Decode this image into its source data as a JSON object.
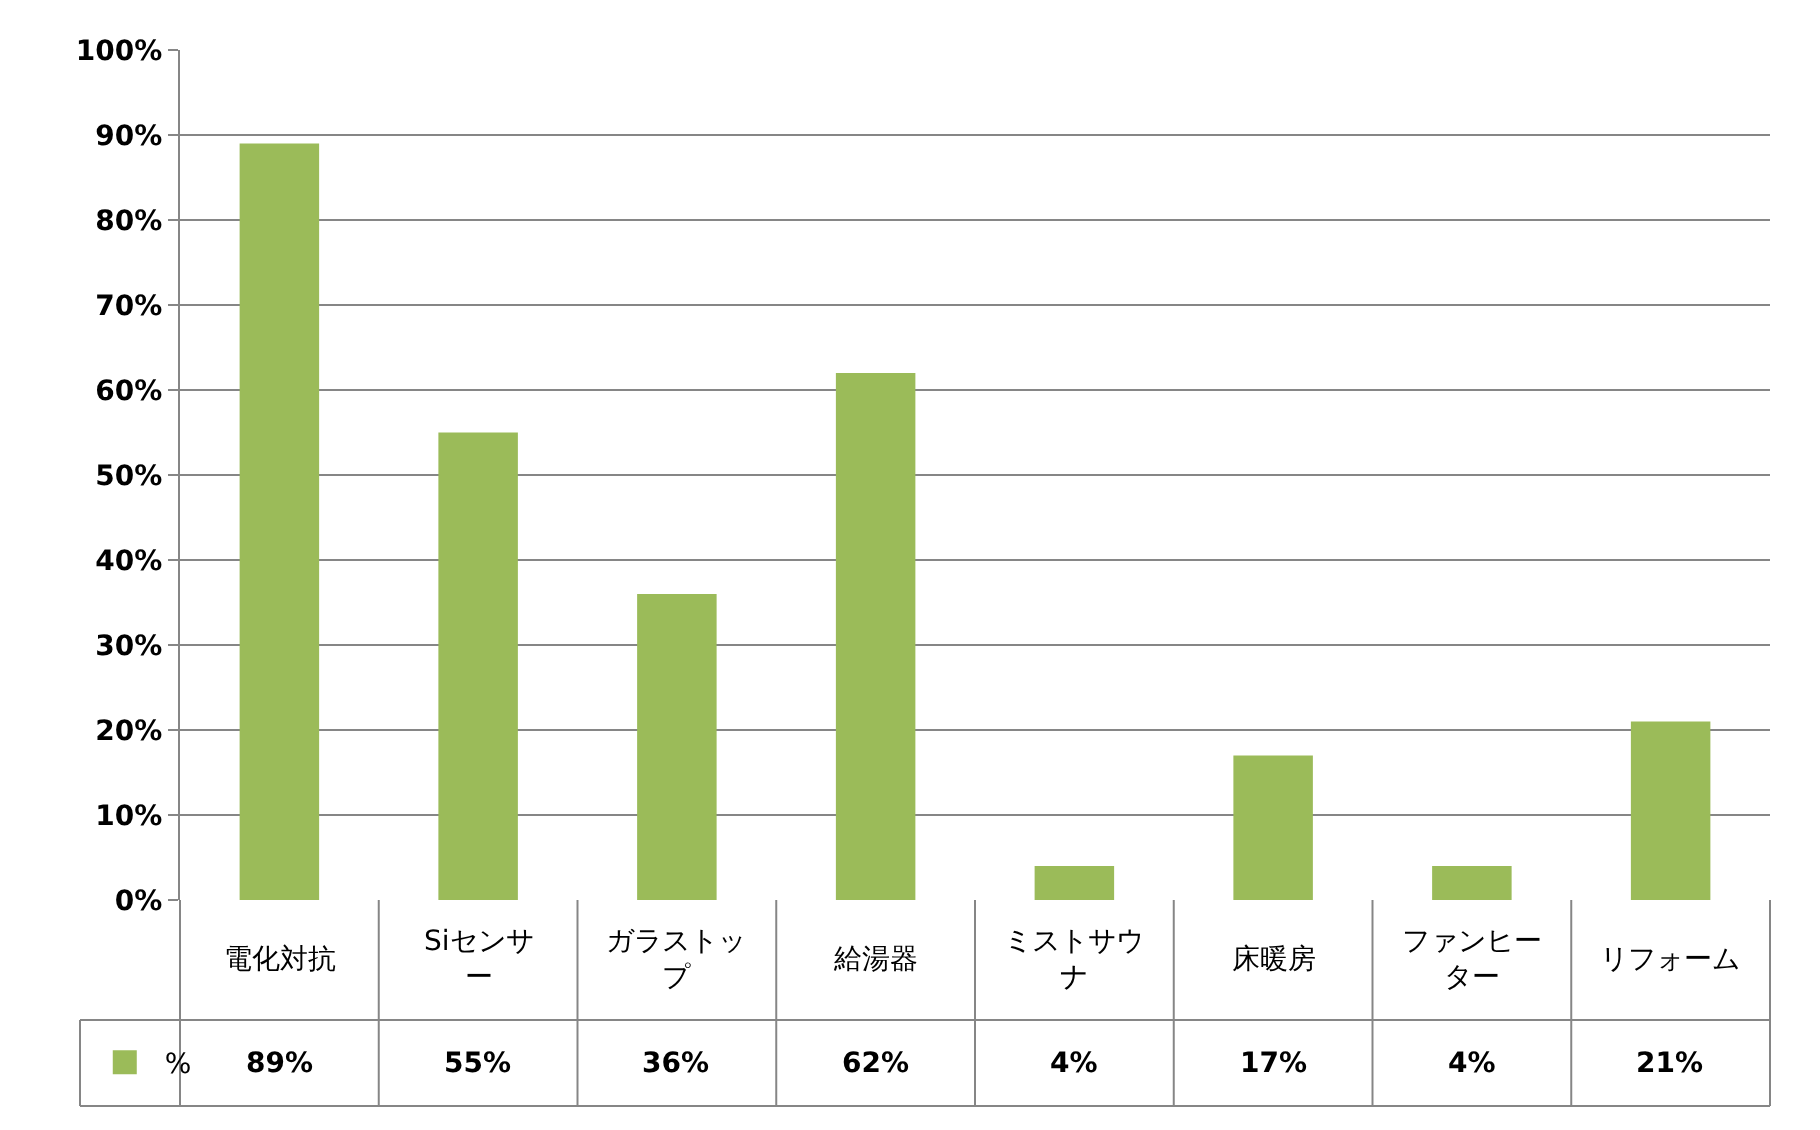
{
  "chart_data": {
    "type": "bar",
    "categories": [
      "電化対抗",
      "Siセンサー",
      "ガラストップ",
      "給湯器",
      "ミストサウナ",
      "床暖房",
      "ファンヒーター",
      "リフォーム"
    ],
    "series": [
      {
        "name": "%",
        "color": "#9bbb59",
        "values": [
          89,
          55,
          36,
          62,
          4,
          17,
          4,
          21
        ],
        "value_labels": [
          "89%",
          "55%",
          "36%",
          "62%",
          "4%",
          "17%",
          "4%",
          "21%"
        ]
      }
    ],
    "ylim": [
      0,
      100
    ],
    "yticks": [
      {
        "value": 0,
        "label": "0%"
      },
      {
        "value": 10,
        "label": "10%"
      },
      {
        "value": 20,
        "label": "20%"
      },
      {
        "value": 30,
        "label": "30%"
      },
      {
        "value": 40,
        "label": "40%"
      },
      {
        "value": 50,
        "label": "50%"
      },
      {
        "value": 60,
        "label": "60%"
      },
      {
        "value": 70,
        "label": "70%"
      },
      {
        "value": 80,
        "label": "80%"
      },
      {
        "value": 90,
        "label": "90%"
      },
      {
        "value": 100,
        "label": "100%"
      }
    ],
    "grid": "y",
    "legend": "bottom left"
  }
}
